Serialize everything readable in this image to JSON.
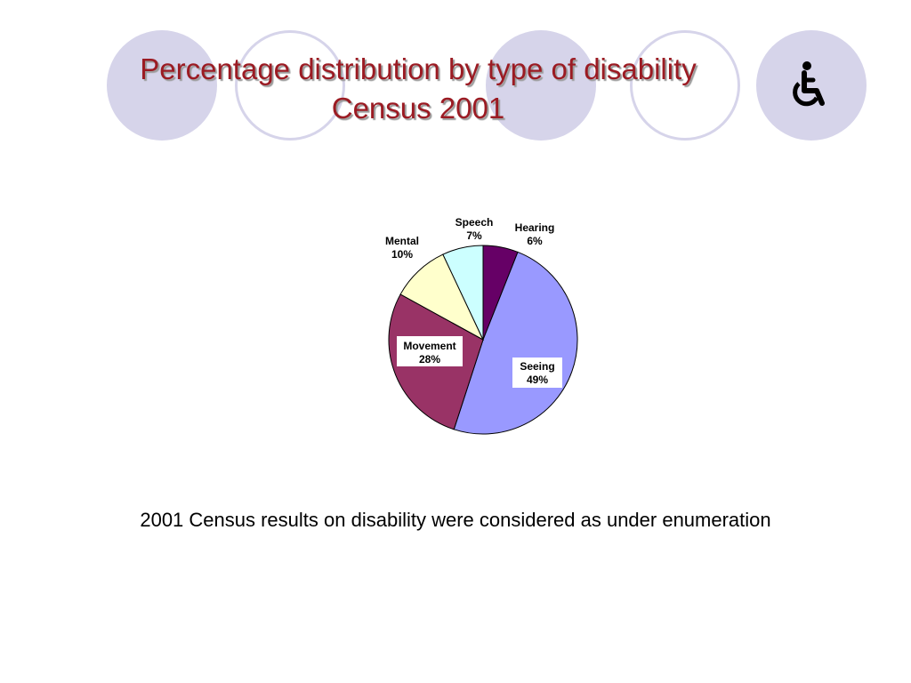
{
  "slide": {
    "title_line1": "Percentage distribution by type of disability",
    "title_line2": "Census 2001",
    "caption": "2001 Census results on disability were considered as under enumeration",
    "icon": "wheelchair-icon",
    "colors": {
      "title": "#9b1b23",
      "decor_circle": "#d6d4ea"
    }
  },
  "chart_data": {
    "type": "pie",
    "title": "",
    "slices": [
      {
        "label": "Hearing",
        "value": 6,
        "display": "6%",
        "color": "#660066"
      },
      {
        "label": "Seeing",
        "value": 49,
        "display": "49%",
        "color": "#9999ff"
      },
      {
        "label": "Movement",
        "value": 28,
        "display": "28%",
        "color": "#993366"
      },
      {
        "label": "Mental",
        "value": 10,
        "display": "10%",
        "color": "#ffffcc"
      },
      {
        "label": "Speech",
        "value": 7,
        "display": "7%",
        "color": "#ccffff"
      }
    ],
    "start_angle_deg": 0,
    "direction": "clockwise",
    "legend": "none"
  }
}
